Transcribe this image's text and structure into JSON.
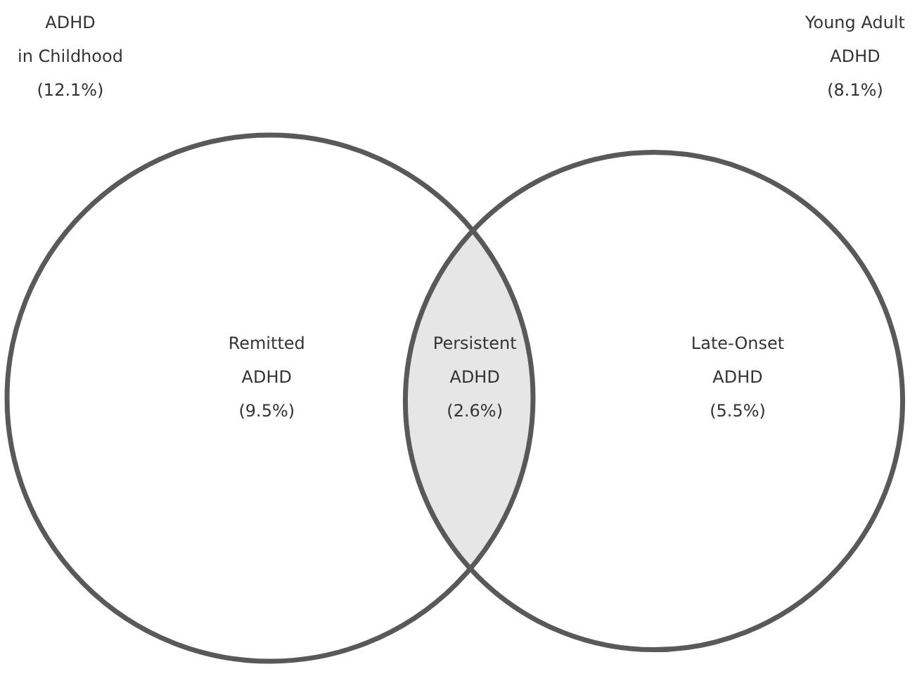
{
  "chart_data": {
    "type": "other",
    "categories": [
      "Remitted\nADHD",
      "Persistent\nADHD",
      "Late-Onset\nADHD"
    ],
    "values": [
      9.5,
      2.6,
      5.5
    ],
    "value_labels": [
      "(9.5%)",
      "(2.6%)",
      "(5.5%)"
    ],
    "colors": [
      "#ffffff",
      "#e6e6e6",
      "#ffffff"
    ],
    "series": [
      {
        "name": "ADHD\nin Childhood",
        "color": "#595959",
        "values": [
          12.1,
          null,
          null
        ],
        "value_labels": [
          "(12.1%)",
          null,
          null
        ]
      },
      {
        "name": "Young Adult\nADHD",
        "color": "#595959",
        "values": [
          null,
          null,
          8.1
        ],
        "value_labels": [
          null,
          null,
          "(8.1%)"
        ]
      }
    ]
  }
}
